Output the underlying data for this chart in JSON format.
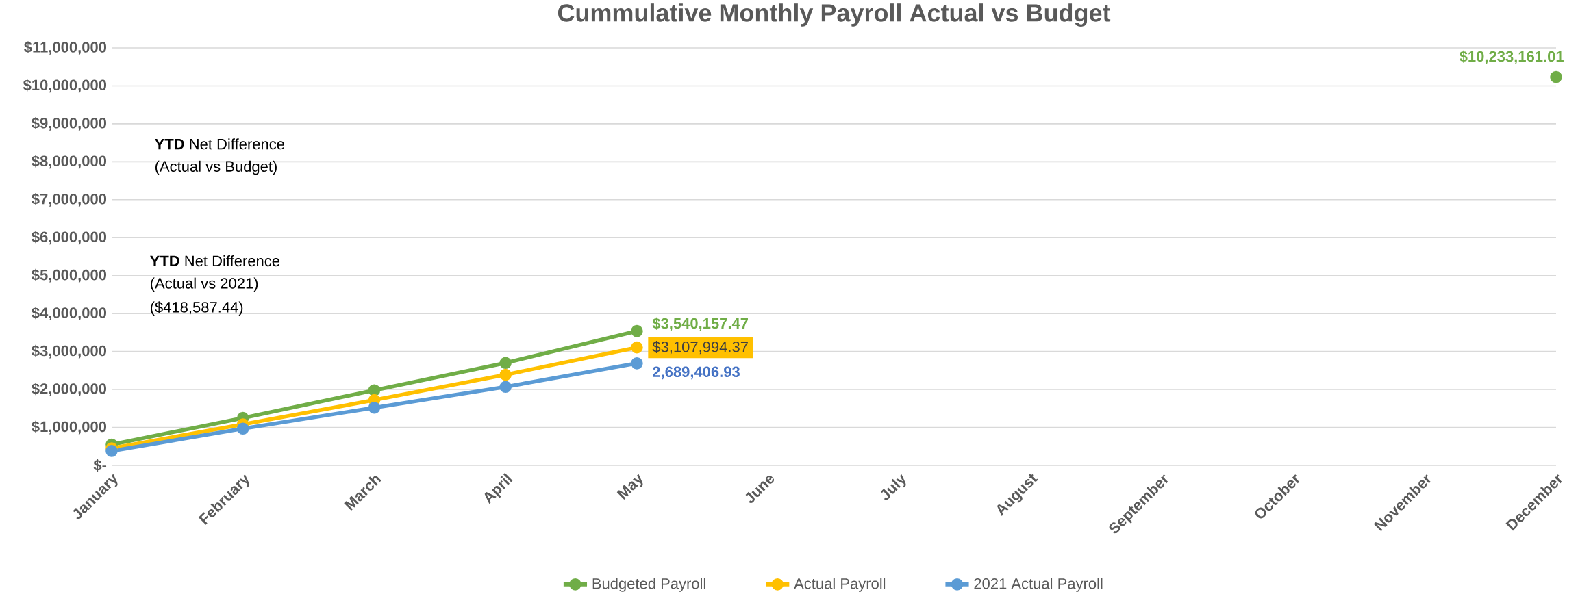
{
  "chart_data": {
    "type": "line",
    "title": "Cummulative Monthly Payroll Actual vs Budget",
    "categories": [
      "January",
      "February",
      "March",
      "April",
      "May",
      "June",
      "July",
      "August",
      "September",
      "October",
      "November",
      "December"
    ],
    "series": [
      {
        "name": "Budgeted Payroll",
        "color": "#70ad47",
        "values": [
          550000,
          1250000,
          1980000,
          2700000,
          3540157.47,
          null,
          null,
          null,
          null,
          null,
          null,
          10233161.01
        ],
        "value_labels": [
          null,
          null,
          null,
          null,
          "$3,540,157.47",
          null,
          null,
          null,
          null,
          null,
          null,
          "$10,233,161.01"
        ]
      },
      {
        "name": "Actual Payroll",
        "color": "#ffc000",
        "values": [
          450000,
          1080000,
          1720000,
          2390000,
          3107994.37,
          null,
          null,
          null,
          null,
          null,
          null,
          null
        ],
        "value_labels": [
          null,
          null,
          null,
          null,
          "$3,107,994.37",
          null,
          null,
          null,
          null,
          null,
          null,
          null
        ]
      },
      {
        "name": "2021 Actual Payroll",
        "color": "#5b9bd5",
        "values": [
          380000,
          970000,
          1520000,
          2070000,
          2689406.93,
          null,
          null,
          null,
          null,
          null,
          null,
          null
        ],
        "value_labels": [
          null,
          null,
          null,
          null,
          "2,689,406.93",
          null,
          null,
          null,
          null,
          null,
          null,
          null
        ]
      }
    ],
    "ylim": [
      0,
      11000000
    ],
    "yticks": [
      {
        "value": 0,
        "label": "$-"
      },
      {
        "value": 1000000,
        "label": "$1,000,000"
      },
      {
        "value": 2000000,
        "label": "$2,000,000"
      },
      {
        "value": 3000000,
        "label": "$3,000,000"
      },
      {
        "value": 4000000,
        "label": "$4,000,000"
      },
      {
        "value": 5000000,
        "label": "$5,000,000"
      },
      {
        "value": 6000000,
        "label": "$6,000,000"
      },
      {
        "value": 7000000,
        "label": "$7,000,000"
      },
      {
        "value": 8000000,
        "label": "$8,000,000"
      },
      {
        "value": 9000000,
        "label": "$9,000,000"
      },
      {
        "value": 10000000,
        "label": "$10,000,000"
      },
      {
        "value": 11000000,
        "label": "$11,000,000"
      }
    ],
    "annotations": [
      "**YTD** Net Difference",
      "(Actual vs Budget)",
      "**YTD** Net Difference",
      "(Actual vs 2021)",
      "($418,587.44)"
    ],
    "grid": "y",
    "legend": "bottom",
    "marker": "circle",
    "line_style": "solid"
  }
}
